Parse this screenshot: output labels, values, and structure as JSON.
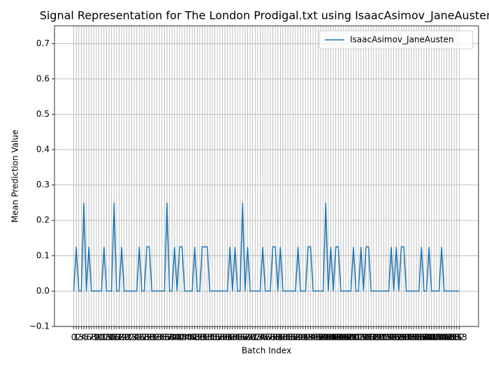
{
  "chart_data": {
    "type": "line",
    "title": "Signal Representation for The London Prodigal.txt using IsaacAsimov_JaneAusten",
    "xlabel": "Batch Index",
    "ylabel": "Mean Prediction Value",
    "x": [
      0,
      1,
      2,
      3,
      4,
      5,
      6,
      7,
      8,
      9,
      10,
      11,
      12,
      13,
      14,
      15,
      16,
      17,
      18,
      19,
      20,
      21,
      22,
      23,
      24,
      25,
      26,
      27,
      28,
      29,
      30,
      31,
      32,
      33,
      34,
      35,
      36,
      37,
      38,
      39,
      40,
      41,
      42,
      43,
      44,
      45,
      46,
      47,
      48,
      49,
      50,
      51,
      52,
      53,
      54,
      55,
      56,
      57,
      58,
      59,
      60,
      61,
      62,
      63,
      64,
      65,
      66,
      67,
      68,
      69,
      70,
      71,
      72,
      73,
      74,
      75,
      76,
      77,
      78,
      79,
      80,
      81,
      82,
      83,
      84,
      85,
      86,
      87,
      88,
      89,
      90,
      91,
      92,
      93,
      94,
      95,
      96,
      97,
      98,
      99,
      100,
      101,
      102,
      103,
      104,
      105,
      106,
      107,
      108,
      109,
      110,
      111,
      112,
      113,
      114,
      115,
      116,
      117,
      118,
      119,
      120,
      121,
      122,
      123,
      124,
      125,
      126,
      127,
      128,
      129,
      130,
      131,
      132,
      133,
      134,
      135,
      136,
      137,
      138,
      139,
      140,
      141,
      142,
      143,
      144,
      145,
      146,
      147,
      148,
      149,
      150,
      151,
      152,
      153
    ],
    "series": [
      {
        "name": "IsaacAsimov_JaneAusten",
        "color": "#1f77b4",
        "values": [
          0,
          0.125,
          0,
          0,
          0.25,
          0,
          0.125,
          0,
          0,
          0,
          0,
          0,
          0.125,
          0,
          0,
          0,
          0.25,
          0,
          0,
          0.125,
          0,
          0,
          0,
          0,
          0,
          0,
          0.125,
          0,
          0,
          0.125,
          0.125,
          0,
          0,
          0,
          0,
          0,
          0,
          0.25,
          0,
          0,
          0.125,
          0,
          0.125,
          0.125,
          0,
          0,
          0,
          0,
          0.125,
          0,
          0,
          0.125,
          0.125,
          0.125,
          0,
          0,
          0,
          0,
          0,
          0,
          0,
          0,
          0.125,
          0,
          0.125,
          0,
          0,
          0.25,
          0,
          0.125,
          0,
          0,
          0,
          0,
          0,
          0.125,
          0,
          0,
          0,
          0.125,
          0.125,
          0,
          0.125,
          0,
          0,
          0,
          0,
          0,
          0,
          0.125,
          0,
          0,
          0,
          0.125,
          0.125,
          0,
          0,
          0,
          0,
          0,
          0.25,
          0,
          0.125,
          0,
          0.125,
          0.125,
          0,
          0,
          0,
          0,
          0,
          0.125,
          0,
          0,
          0.125,
          0,
          0.125,
          0.125,
          0,
          0,
          0,
          0,
          0,
          0,
          0,
          0,
          0.125,
          0,
          0.125,
          0,
          0.125,
          0.125,
          0,
          0,
          0,
          0,
          0,
          0,
          0.125,
          0,
          0,
          0.125,
          0,
          0,
          0,
          0,
          0.125,
          0,
          0,
          0,
          0,
          0,
          0,
          0
        ]
      }
    ],
    "xlim": [
      -7.65,
      160.65
    ],
    "xticks": [
      0,
      1,
      2,
      3,
      4,
      5,
      6,
      7,
      8,
      9,
      10,
      11,
      12,
      13,
      14,
      15,
      16,
      17,
      18,
      19,
      20,
      21,
      22,
      23,
      24,
      25,
      26,
      27,
      28,
      29,
      30,
      31,
      32,
      33,
      34,
      35,
      36,
      37,
      38,
      39,
      40,
      41,
      42,
      43,
      44,
      45,
      46,
      47,
      48,
      49,
      50,
      51,
      52,
      53,
      54,
      55,
      56,
      57,
      58,
      59,
      60,
      61,
      62,
      63,
      64,
      65,
      66,
      67,
      68,
      69,
      70,
      71,
      72,
      73,
      74,
      75,
      76,
      77,
      78,
      79,
      80,
      81,
      82,
      83,
      84,
      85,
      86,
      87,
      88,
      89,
      90,
      91,
      92,
      93,
      94,
      95,
      96,
      97,
      98,
      99,
      100,
      101,
      102,
      103,
      104,
      105,
      106,
      107,
      108,
      109,
      110,
      111,
      112,
      113,
      114,
      115,
      116,
      117,
      118,
      119,
      120,
      121,
      122,
      123,
      124,
      125,
      126,
      127,
      128,
      129,
      130,
      131,
      132,
      133,
      134,
      135,
      136,
      137,
      138,
      139,
      140,
      141,
      142,
      143,
      144,
      145,
      146,
      147,
      148,
      149,
      150,
      151,
      152,
      153
    ],
    "ylim": [
      -0.1,
      0.75
    ],
    "yticks": [
      {
        "value": -0.1,
        "label": "−0.1"
      },
      {
        "value": 0,
        "label": "0.0"
      },
      0.1,
      0.2,
      0.3,
      0.4,
      0.5,
      0.6,
      0.7
    ],
    "grid": true,
    "legend": "upper right"
  }
}
